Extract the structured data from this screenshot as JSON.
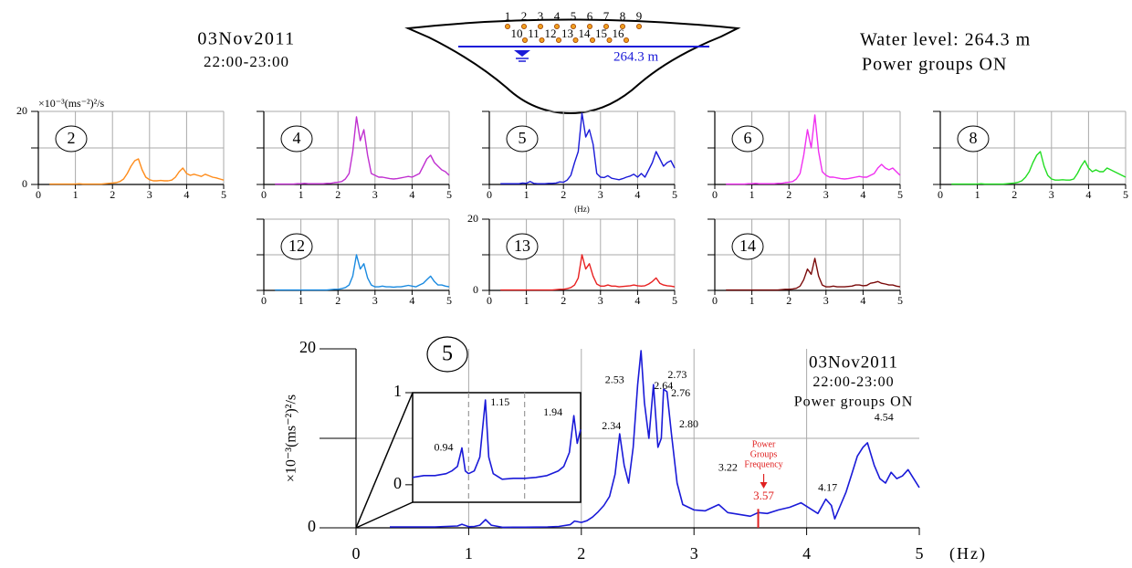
{
  "header": {
    "date": "03Nov2011",
    "time": "22:00-23:00",
    "water_level": "Water level:  264.3 m",
    "status": "Power groups ON"
  },
  "dam": {
    "sensors_top": [
      "1",
      "2",
      "3",
      "4",
      "5",
      "6",
      "7",
      "8",
      "9"
    ],
    "sensors_bottom": [
      "10",
      "11",
      "12",
      "13",
      "14",
      "15",
      "16"
    ],
    "level_label": "264.3 m"
  },
  "chart_data": [
    {
      "type": "line",
      "label": "2",
      "color": "#ff8c1a",
      "ylabel": "×10⁻³(ms⁻²)²/s",
      "frame": true,
      "grid": true,
      "ytick_labels": true,
      "xlim": [
        0,
        5
      ],
      "xticks": [
        0,
        1,
        2,
        3,
        4,
        5
      ],
      "ylim": [
        0,
        20
      ],
      "yticks": [
        0,
        20
      ],
      "yticks_minor": [
        10
      ],
      "x": [
        0.3,
        0.4,
        0.5,
        0.6,
        0.7,
        0.8,
        0.9,
        1.0,
        1.1,
        1.2,
        1.3,
        1.4,
        1.5,
        1.6,
        1.7,
        1.8,
        1.9,
        2.0,
        2.1,
        2.2,
        2.3,
        2.4,
        2.5,
        2.6,
        2.7,
        2.8,
        2.9,
        3.0,
        3.1,
        3.2,
        3.3,
        3.4,
        3.5,
        3.6,
        3.7,
        3.8,
        3.9,
        4.0,
        4.1,
        4.2,
        4.3,
        4.4,
        4.5,
        4.6,
        4.7,
        4.8,
        4.9,
        5.0
      ],
      "values": [
        0.1,
        0.1,
        0.1,
        0.1,
        0.1,
        0.1,
        0.1,
        0.1,
        0.2,
        0.1,
        0.1,
        0.1,
        0.1,
        0.1,
        0.1,
        0.2,
        0.3,
        0.4,
        0.5,
        0.8,
        1.5,
        3,
        5,
        6.5,
        7,
        4,
        2,
        1.3,
        1,
        1,
        1.1,
        1,
        1,
        1.2,
        2,
        3.5,
        4.5,
        3,
        2.5,
        2.8,
        2.5,
        2.2,
        2.8,
        2.4,
        2,
        1.8,
        1.5,
        1.2
      ]
    },
    {
      "type": "line",
      "label": "4",
      "color": "#c030d0",
      "frame": true,
      "grid": true,
      "ytick_labels": false,
      "xlim": [
        0,
        5
      ],
      "xticks": [
        0,
        1,
        2,
        3,
        4,
        5
      ],
      "ylim": [
        0,
        20
      ],
      "yticks": [
        0,
        20
      ],
      "yticks_minor": [
        10
      ],
      "x": [
        0.3,
        0.4,
        0.5,
        0.6,
        0.7,
        0.8,
        0.9,
        1.0,
        1.1,
        1.2,
        1.3,
        1.4,
        1.5,
        1.6,
        1.7,
        1.8,
        1.9,
        2.0,
        2.1,
        2.2,
        2.3,
        2.4,
        2.5,
        2.6,
        2.7,
        2.8,
        2.9,
        3.0,
        3.1,
        3.2,
        3.3,
        3.4,
        3.5,
        3.6,
        3.7,
        3.8,
        3.9,
        4.0,
        4.1,
        4.2,
        4.3,
        4.4,
        4.5,
        4.6,
        4.7,
        4.8,
        4.9,
        5.0
      ],
      "values": [
        0.1,
        0.1,
        0.1,
        0.1,
        0.1,
        0.1,
        0.2,
        0.2,
        0.3,
        0.2,
        0.2,
        0.2,
        0.2,
        0.2,
        0.3,
        0.3,
        0.5,
        0.6,
        0.8,
        1.5,
        3,
        9,
        18.5,
        12,
        15,
        8,
        3,
        2.5,
        2,
        2,
        1.8,
        1.6,
        1.5,
        1.6,
        1.8,
        2,
        2.2,
        2,
        2.5,
        3,
        5,
        7,
        8,
        6,
        5,
        4,
        3.5,
        2.5
      ]
    },
    {
      "type": "line",
      "label": "5",
      "color": "#1a1ad8",
      "xlabel": "(Hz)",
      "frame": true,
      "grid": true,
      "ytick_labels": false,
      "xlim": [
        0,
        5
      ],
      "xticks": [
        0,
        1,
        2,
        3,
        4,
        5
      ],
      "ylim": [
        0,
        20
      ],
      "yticks": [
        0,
        20
      ],
      "yticks_minor": [
        10
      ],
      "x": [
        0.3,
        0.4,
        0.5,
        0.6,
        0.7,
        0.8,
        0.9,
        1.0,
        1.1,
        1.2,
        1.3,
        1.4,
        1.5,
        1.6,
        1.7,
        1.8,
        1.9,
        2.0,
        2.1,
        2.2,
        2.3,
        2.4,
        2.5,
        2.6,
        2.7,
        2.8,
        2.9,
        3.0,
        3.1,
        3.2,
        3.3,
        3.4,
        3.5,
        3.6,
        3.7,
        3.8,
        3.9,
        4.0,
        4.1,
        4.2,
        4.3,
        4.4,
        4.5,
        4.6,
        4.7,
        4.8,
        4.9,
        5.0
      ],
      "values": [
        0.2,
        0.2,
        0.2,
        0.2,
        0.2,
        0.2,
        0.4,
        0.3,
        0.8,
        0.3,
        0.2,
        0.2,
        0.2,
        0.3,
        0.3,
        0.4,
        0.7,
        0.6,
        1.2,
        2.5,
        6,
        9,
        19.5,
        13,
        15,
        11,
        3,
        2,
        1.9,
        2.4,
        1.7,
        1.5,
        1.3,
        1.6,
        2,
        2.3,
        2.8,
        2,
        3,
        2,
        4,
        6,
        9,
        7,
        5,
        6,
        6.5,
        4.5
      ]
    },
    {
      "type": "line",
      "label": "6",
      "color": "#f030f0",
      "frame": true,
      "grid": true,
      "ytick_labels": false,
      "xlim": [
        0,
        5
      ],
      "xticks": [
        0,
        1,
        2,
        3,
        4,
        5
      ],
      "ylim": [
        0,
        20
      ],
      "yticks": [
        0,
        20
      ],
      "yticks_minor": [
        10
      ],
      "x": [
        0.3,
        0.4,
        0.5,
        0.6,
        0.7,
        0.8,
        0.9,
        1.0,
        1.1,
        1.2,
        1.3,
        1.4,
        1.5,
        1.6,
        1.7,
        1.8,
        1.9,
        2.0,
        2.1,
        2.2,
        2.3,
        2.4,
        2.5,
        2.6,
        2.7,
        2.8,
        2.9,
        3.0,
        3.1,
        3.2,
        3.3,
        3.4,
        3.5,
        3.6,
        3.7,
        3.8,
        3.9,
        4.0,
        4.1,
        4.2,
        4.3,
        4.4,
        4.5,
        4.6,
        4.7,
        4.8,
        4.9,
        5.0
      ],
      "values": [
        0.1,
        0.1,
        0.1,
        0.1,
        0.1,
        0.1,
        0.2,
        0.2,
        0.3,
        0.2,
        0.2,
        0.2,
        0.2,
        0.2,
        0.3,
        0.3,
        0.5,
        0.6,
        0.8,
        1.5,
        3,
        8,
        15,
        10,
        19,
        9,
        3.5,
        2.5,
        2,
        2,
        1.8,
        1.6,
        1.5,
        1.6,
        1.8,
        2,
        2.2,
        2,
        2,
        2.5,
        3,
        4.5,
        5.5,
        4.5,
        4,
        4.5,
        3.5,
        2.5
      ]
    },
    {
      "type": "line",
      "label": "8",
      "color": "#22dd22",
      "frame": true,
      "grid": true,
      "ytick_labels": false,
      "xlim": [
        0,
        5
      ],
      "xticks": [
        0,
        1,
        2,
        3,
        4,
        5
      ],
      "ylim": [
        0,
        20
      ],
      "yticks": [
        0,
        20
      ],
      "yticks_minor": [
        10
      ],
      "x": [
        0.3,
        0.4,
        0.5,
        0.6,
        0.7,
        0.8,
        0.9,
        1.0,
        1.1,
        1.2,
        1.3,
        1.4,
        1.5,
        1.6,
        1.7,
        1.8,
        1.9,
        2.0,
        2.1,
        2.2,
        2.3,
        2.4,
        2.5,
        2.6,
        2.7,
        2.8,
        2.9,
        3.0,
        3.1,
        3.2,
        3.3,
        3.4,
        3.5,
        3.6,
        3.7,
        3.8,
        3.9,
        4.0,
        4.1,
        4.2,
        4.3,
        4.4,
        4.5,
        4.6,
        4.7,
        4.8,
        4.9,
        5.0
      ],
      "values": [
        0.1,
        0.1,
        0.1,
        0.1,
        0.1,
        0.1,
        0.1,
        0.1,
        0.2,
        0.1,
        0.1,
        0.1,
        0.1,
        0.1,
        0.1,
        0.2,
        0.3,
        0.4,
        0.6,
        1,
        2,
        3.5,
        6,
        8,
        9,
        5,
        2.5,
        1.5,
        1.2,
        1.2,
        1.3,
        1.2,
        1.2,
        1.5,
        3,
        5,
        6.5,
        4.5,
        3.5,
        4,
        3.5,
        3.5,
        4.5,
        4,
        3.5,
        3,
        2.5,
        2
      ]
    },
    {
      "type": "line",
      "label": "12",
      "color": "#1a8ae0",
      "frame": true,
      "grid": true,
      "ytick_labels": false,
      "xlim": [
        0,
        5
      ],
      "xticks": [
        0,
        1,
        2,
        3,
        4,
        5
      ],
      "ylim": [
        0,
        20
      ],
      "yticks": [
        0,
        20
      ],
      "yticks_minor": [
        10
      ],
      "x": [
        0.3,
        0.4,
        0.5,
        0.6,
        0.7,
        0.8,
        0.9,
        1.0,
        1.1,
        1.2,
        1.3,
        1.4,
        1.5,
        1.6,
        1.7,
        1.8,
        1.9,
        2.0,
        2.1,
        2.2,
        2.3,
        2.4,
        2.5,
        2.6,
        2.7,
        2.8,
        2.9,
        3.0,
        3.1,
        3.2,
        3.3,
        3.4,
        3.5,
        3.6,
        3.7,
        3.8,
        3.9,
        4.0,
        4.1,
        4.2,
        4.3,
        4.4,
        4.5,
        4.6,
        4.7,
        4.8,
        4.9,
        5.0
      ],
      "values": [
        0.1,
        0.1,
        0.1,
        0.1,
        0.1,
        0.1,
        0.1,
        0.1,
        0.1,
        0.1,
        0.1,
        0.1,
        0.1,
        0.1,
        0.1,
        0.2,
        0.3,
        0.3,
        0.5,
        0.8,
        1.5,
        4,
        10,
        6,
        7.5,
        3.5,
        1.5,
        1,
        1,
        1.2,
        1,
        1,
        0.9,
        1,
        1,
        1.2,
        1.4,
        1.2,
        1,
        1.5,
        2,
        3,
        4,
        2.5,
        1.5,
        1.5,
        1.2,
        1
      ]
    },
    {
      "type": "line",
      "label": "13",
      "color": "#e82020",
      "frame": true,
      "grid": true,
      "ytick_labels": true,
      "xlim": [
        0,
        5
      ],
      "xticks": [
        0,
        1,
        2,
        3,
        4,
        5
      ],
      "ylim": [
        0,
        20
      ],
      "yticks": [
        0,
        20
      ],
      "yticks_minor": [
        10
      ],
      "x": [
        0.3,
        0.4,
        0.5,
        0.6,
        0.7,
        0.8,
        0.9,
        1.0,
        1.1,
        1.2,
        1.3,
        1.4,
        1.5,
        1.6,
        1.7,
        1.8,
        1.9,
        2.0,
        2.1,
        2.2,
        2.3,
        2.4,
        2.5,
        2.6,
        2.7,
        2.8,
        2.9,
        3.0,
        3.1,
        3.2,
        3.3,
        3.4,
        3.5,
        3.6,
        3.7,
        3.8,
        3.9,
        4.0,
        4.1,
        4.2,
        4.3,
        4.4,
        4.5,
        4.6,
        4.7,
        4.8,
        4.9,
        5.0
      ],
      "values": [
        0.1,
        0.1,
        0.1,
        0.1,
        0.1,
        0.1,
        0.1,
        0.1,
        0.1,
        0.1,
        0.1,
        0.1,
        0.1,
        0.1,
        0.1,
        0.2,
        0.3,
        0.3,
        0.5,
        0.8,
        1.5,
        3.5,
        10,
        6,
        7.5,
        4,
        1.8,
        1.2,
        1.2,
        1.5,
        1.2,
        1.2,
        1,
        1.1,
        1.2,
        1.3,
        1.5,
        1.3,
        1.2,
        1.3,
        1.8,
        2.5,
        3.5,
        2,
        1.5,
        1.3,
        1.2,
        1
      ]
    },
    {
      "type": "line",
      "label": "14",
      "color": "#7a0a0a",
      "frame": true,
      "grid": true,
      "ytick_labels": false,
      "xlim": [
        0,
        5
      ],
      "xticks": [
        0,
        1,
        2,
        3,
        4,
        5
      ],
      "ylim": [
        0,
        20
      ],
      "yticks": [
        0,
        20
      ],
      "yticks_minor": [
        10
      ],
      "x": [
        0.3,
        0.4,
        0.5,
        0.6,
        0.7,
        0.8,
        0.9,
        1.0,
        1.1,
        1.2,
        1.3,
        1.4,
        1.5,
        1.6,
        1.7,
        1.8,
        1.9,
        2.0,
        2.1,
        2.2,
        2.3,
        2.4,
        2.5,
        2.6,
        2.7,
        2.8,
        2.9,
        3.0,
        3.1,
        3.2,
        3.3,
        3.4,
        3.5,
        3.6,
        3.7,
        3.8,
        3.9,
        4.0,
        4.1,
        4.2,
        4.3,
        4.4,
        4.5,
        4.6,
        4.7,
        4.8,
        4.9,
        5.0
      ],
      "values": [
        0.1,
        0.1,
        0.1,
        0.1,
        0.1,
        0.1,
        0.1,
        0.1,
        0.1,
        0.1,
        0.1,
        0.1,
        0.1,
        0.1,
        0.1,
        0.2,
        0.3,
        0.3,
        0.4,
        0.6,
        1.2,
        3,
        6,
        4.5,
        9,
        4,
        1.5,
        1,
        1,
        1.2,
        1,
        1,
        1,
        1.1,
        1.2,
        1.5,
        1.5,
        1.3,
        1.4,
        2,
        2.2,
        2.5,
        2,
        1.8,
        1.5,
        1.5,
        1.2,
        1
      ]
    },
    {
      "type": "line",
      "label": "5",
      "color": "#1a1ad8",
      "ylabel": "×10⁻³(ms⁻²)²/s",
      "xlabel": "(Hz)",
      "frame": false,
      "grid": true,
      "ytick_labels": true,
      "info": [
        "03Nov2011",
        "22:00-23:00",
        "Power groups ON"
      ],
      "xlim": [
        0,
        5
      ],
      "xticks": [
        0,
        1,
        2,
        3,
        4,
        5
      ],
      "ylim": [
        0,
        20
      ],
      "yticks": [
        0,
        20
      ],
      "yticks_minor": [
        10
      ],
      "x": [
        0.3,
        0.4,
        0.5,
        0.6,
        0.7,
        0.8,
        0.9,
        0.94,
        1.0,
        1.05,
        1.1,
        1.15,
        1.2,
        1.3,
        1.4,
        1.5,
        1.6,
        1.7,
        1.8,
        1.9,
        1.94,
        2.0,
        2.05,
        2.1,
        2.15,
        2.2,
        2.25,
        2.3,
        2.34,
        2.38,
        2.42,
        2.46,
        2.5,
        2.53,
        2.56,
        2.6,
        2.64,
        2.68,
        2.71,
        2.73,
        2.76,
        2.8,
        2.85,
        2.9,
        3.0,
        3.1,
        3.22,
        3.3,
        3.4,
        3.5,
        3.57,
        3.65,
        3.75,
        3.85,
        3.95,
        4.05,
        4.1,
        4.17,
        4.22,
        4.25,
        4.3,
        4.35,
        4.4,
        4.45,
        4.5,
        4.54,
        4.6,
        4.65,
        4.7,
        4.75,
        4.8,
        4.85,
        4.9,
        4.95,
        5.0
      ],
      "values": [
        0.1,
        0.1,
        0.1,
        0.1,
        0.1,
        0.15,
        0.2,
        0.4,
        0.12,
        0.15,
        0.3,
        0.92,
        0.3,
        0.06,
        0.07,
        0.07,
        0.08,
        0.1,
        0.15,
        0.35,
        0.75,
        0.6,
        0.8,
        1.2,
        1.8,
        2.5,
        3.5,
        6,
        10.5,
        7,
        5,
        9,
        16,
        19.8,
        14,
        10,
        16,
        9,
        10,
        15.5,
        15.2,
        10.5,
        5,
        2.6,
        2,
        1.9,
        2.6,
        1.7,
        1.5,
        1.3,
        1.7,
        1.6,
        2,
        2.3,
        2.8,
        2,
        1.6,
        3.2,
        2.5,
        1,
        2.5,
        4,
        6,
        8,
        9,
        9.5,
        7,
        5.5,
        5,
        6.2,
        5.5,
        5.8,
        6.5,
        5.5,
        4.5
      ],
      "peaks": [
        {
          "value": 2.34,
          "label": "2.34"
        },
        {
          "value": 2.53,
          "label": "2.53"
        },
        {
          "value": 2.64,
          "label": "2.64"
        },
        {
          "value": 2.73,
          "label": "2.73"
        },
        {
          "value": 2.76,
          "label": "2.76"
        },
        {
          "value": 2.8,
          "label": "2.80"
        },
        {
          "value": 3.22,
          "label": "3.22"
        },
        {
          "value": 4.17,
          "label": "4.17"
        },
        {
          "value": 4.54,
          "label": "4.54"
        }
      ],
      "marker": {
        "value": 3.57,
        "label": "3.57",
        "text": [
          "Power",
          "Groups",
          "Frequency"
        ],
        "color": "#e02020"
      }
    },
    {
      "type": "line",
      "color": "#1a1ad8",
      "grid": true,
      "ytick_labels": true,
      "xlim": [
        0.5,
        2.0
      ],
      "xgrid": [
        1,
        1.5
      ],
      "ylim": [
        -0.19,
        1
      ],
      "yticks": [
        0,
        1
      ],
      "x": [
        0.5,
        0.6,
        0.7,
        0.8,
        0.85,
        0.9,
        0.94,
        0.97,
        1.0,
        1.05,
        1.1,
        1.15,
        1.18,
        1.22,
        1.3,
        1.4,
        1.5,
        1.6,
        1.7,
        1.8,
        1.85,
        1.9,
        1.94,
        1.97,
        2.0
      ],
      "values": [
        0.08,
        0.1,
        0.1,
        0.12,
        0.15,
        0.2,
        0.4,
        0.15,
        0.12,
        0.15,
        0.3,
        0.92,
        0.3,
        0.12,
        0.06,
        0.07,
        0.07,
        0.08,
        0.1,
        0.15,
        0.2,
        0.35,
        0.75,
        0.45,
        0.6
      ],
      "peaks": [
        {
          "value": 0.94,
          "label": "0.94"
        },
        {
          "value": 1.15,
          "label": "1.15"
        },
        {
          "value": 1.94,
          "label": "1.94"
        }
      ]
    }
  ]
}
